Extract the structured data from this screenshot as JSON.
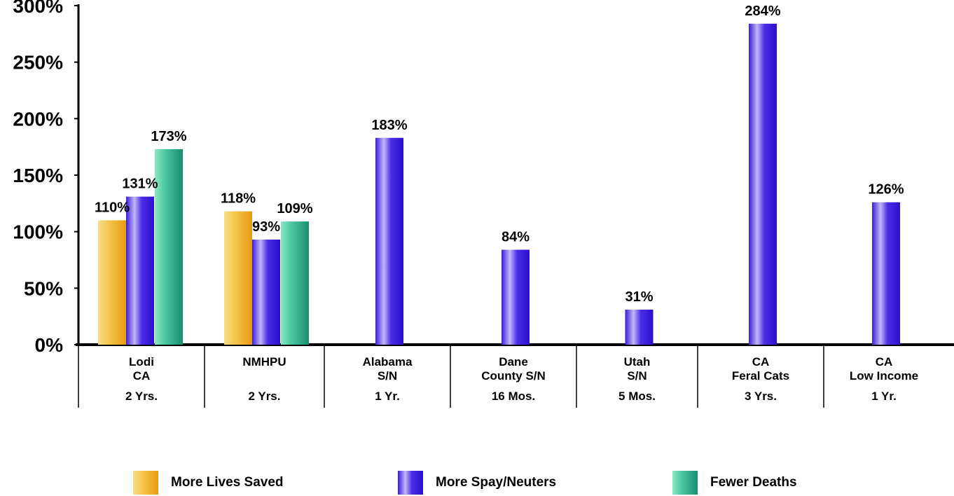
{
  "chart_data": {
    "type": "bar",
    "ylim": [
      0,
      300
    ],
    "yticks": [
      "0%",
      "50%",
      "100%",
      "150%",
      "200%",
      "250%",
      "300%"
    ],
    "categories": [
      {
        "lines": [
          "Lodi",
          "CA"
        ],
        "duration": "2 Yrs."
      },
      {
        "lines": [
          "NMHPU"
        ],
        "duration": "2 Yrs."
      },
      {
        "lines": [
          "Alabama",
          "S/N"
        ],
        "duration": "1 Yr."
      },
      {
        "lines": [
          "Dane",
          "County S/N"
        ],
        "duration": "16 Mos."
      },
      {
        "lines": [
          "Utah",
          "S/N"
        ],
        "duration": "5 Mos."
      },
      {
        "lines": [
          "CA",
          "Feral Cats"
        ],
        "duration": "3 Yrs."
      },
      {
        "lines": [
          "CA",
          "Low Income"
        ],
        "duration": "1 Yr."
      }
    ],
    "series": [
      {
        "name": "More Lives Saved",
        "color": "#f2b225",
        "values": [
          110,
          118,
          null,
          null,
          null,
          null,
          null
        ],
        "labels": [
          "110%",
          "118%",
          null,
          null,
          null,
          null,
          null
        ]
      },
      {
        "name": "More Spay/Neuters",
        "color": "#3a1ee0",
        "values": [
          131,
          93,
          183,
          84,
          31,
          284,
          126
        ],
        "labels": [
          "131%",
          "93%",
          "183%",
          "84%",
          "31%",
          "284%",
          "126%"
        ]
      },
      {
        "name": "Fewer Deaths",
        "color": "#22a07e",
        "values": [
          173,
          109,
          null,
          null,
          null,
          null,
          null
        ],
        "labels": [
          "173%",
          "109%",
          null,
          null,
          null,
          null,
          null
        ]
      }
    ],
    "legend_position": "bottom",
    "grid": false
  }
}
